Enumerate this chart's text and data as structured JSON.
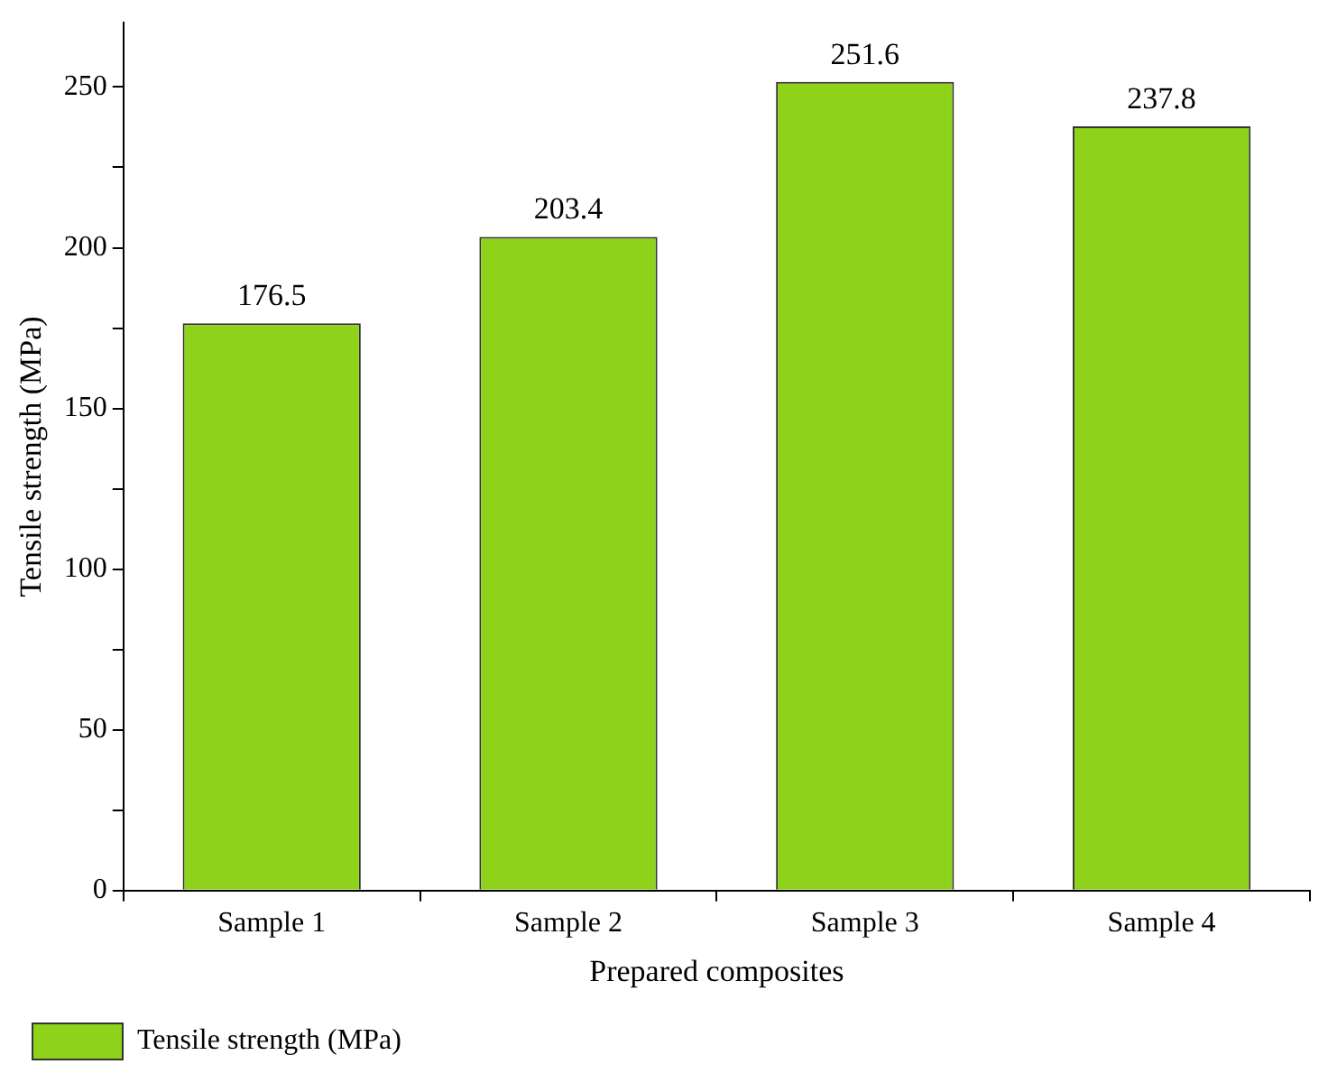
{
  "chart_data": {
    "type": "bar",
    "xlabel": "Prepared composites",
    "ylabel": "Tensile strength (MPa)",
    "categories": [
      "Sample 1",
      "Sample 2",
      "Sample 3",
      "Sample 4"
    ],
    "series": [
      {
        "name": "Tensile strength (MPa)",
        "color": "#8fd21a",
        "values": [
          176.5,
          203.4,
          251.6,
          237.8
        ]
      }
    ],
    "ylim": [
      0,
      270
    ],
    "yticks": [
      0,
      {
        "value": 25,
        "label": null
      },
      50,
      {
        "value": 75,
        "label": null
      },
      100,
      {
        "value": 125,
        "label": null
      },
      150,
      {
        "value": 175,
        "label": null
      },
      200,
      {
        "value": 225,
        "label": null
      },
      250
    ],
    "data_labels": true,
    "grid": false,
    "legend": "bottom left"
  }
}
